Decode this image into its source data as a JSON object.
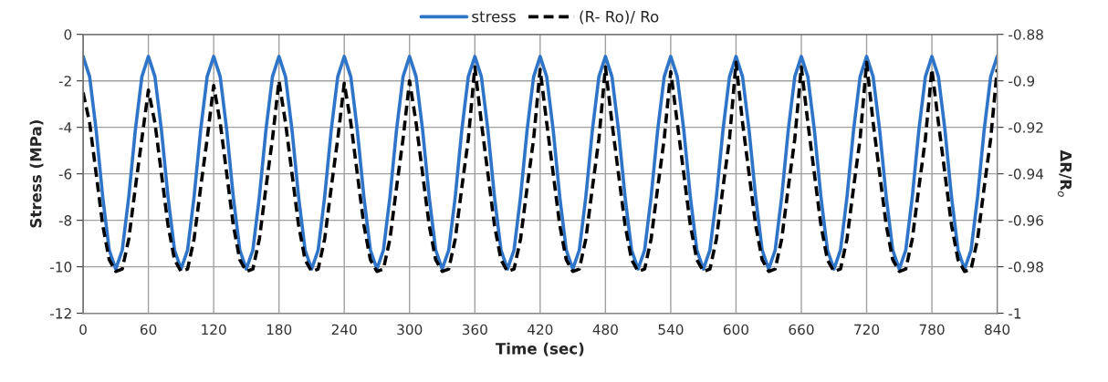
{
  "chart_data": {
    "type": "line",
    "xlabel": "Time (sec)",
    "ylabel": "Stress (MPa)",
    "y2label": "ΔR/R$_{o}$",
    "x": [
      0,
      6,
      12,
      18,
      24,
      30,
      36,
      42,
      48,
      54,
      60,
      66,
      72,
      78,
      84,
      90,
      96,
      102,
      108,
      114,
      120,
      126,
      132,
      138,
      144,
      150,
      156,
      162,
      168,
      174,
      180,
      186,
      192,
      198,
      204,
      210,
      216,
      222,
      228,
      234,
      240,
      246,
      252,
      258,
      264,
      270,
      276,
      282,
      288,
      294,
      300,
      306,
      312,
      318,
      324,
      330,
      336,
      342,
      348,
      354,
      360,
      366,
      372,
      378,
      384,
      390,
      396,
      402,
      408,
      414,
      420,
      426,
      432,
      438,
      444,
      450,
      456,
      462,
      468,
      474,
      480,
      486,
      492,
      498,
      504,
      510,
      516,
      522,
      528,
      534,
      540,
      546,
      552,
      558,
      564,
      570,
      576,
      582,
      588,
      594,
      600,
      606,
      612,
      618,
      624,
      630,
      636,
      642,
      648,
      654,
      660,
      666,
      672,
      678,
      684,
      690,
      696,
      702,
      708,
      714,
      720,
      726,
      732,
      738,
      744,
      750,
      756,
      762,
      768,
      774,
      780,
      786,
      792,
      798,
      804,
      810,
      816,
      822,
      828,
      834,
      840
    ],
    "series": [
      {
        "name": "stress",
        "color": "#2e75c9",
        "line_style": "solid",
        "values": [
          -0.95,
          -1.82,
          -4.12,
          -6.98,
          -9.28,
          -10.1,
          -9.28,
          -6.98,
          -4.12,
          -1.82,
          -0.95,
          -1.82,
          -4.12,
          -6.98,
          -9.28,
          -10.1,
          -9.28,
          -6.98,
          -4.12,
          -1.82,
          -0.95,
          -1.82,
          -4.12,
          -6.98,
          -9.28,
          -10.1,
          -9.28,
          -6.98,
          -4.12,
          -1.82,
          -0.95,
          -1.82,
          -4.12,
          -6.98,
          -9.28,
          -10.1,
          -9.28,
          -6.98,
          -4.12,
          -1.82,
          -0.95,
          -1.82,
          -4.12,
          -6.98,
          -9.28,
          -10.1,
          -9.28,
          -6.98,
          -4.12,
          -1.82,
          -0.95,
          -1.82,
          -4.12,
          -6.98,
          -9.28,
          -10.1,
          -9.28,
          -6.98,
          -4.12,
          -1.82,
          -0.95,
          -1.82,
          -4.12,
          -6.98,
          -9.28,
          -10.1,
          -9.28,
          -6.98,
          -4.12,
          -1.82,
          -0.95,
          -1.82,
          -4.12,
          -6.98,
          -9.28,
          -10.1,
          -9.28,
          -6.98,
          -4.12,
          -1.82,
          -0.95,
          -1.82,
          -4.12,
          -6.98,
          -9.28,
          -10.1,
          -9.28,
          -6.98,
          -4.12,
          -1.82,
          -0.95,
          -1.82,
          -4.12,
          -6.98,
          -9.28,
          -10.1,
          -9.28,
          -6.98,
          -4.12,
          -1.82,
          -0.95,
          -1.82,
          -4.12,
          -6.98,
          -9.28,
          -10.1,
          -9.28,
          -6.98,
          -4.12,
          -1.82,
          -0.95,
          -1.82,
          -4.12,
          -6.98,
          -9.28,
          -10.1,
          -9.28,
          -6.98,
          -4.12,
          -1.82,
          -0.95,
          -1.82,
          -4.12,
          -6.98,
          -9.28,
          -10.1,
          -9.28,
          -6.98,
          -4.12,
          -1.82,
          -0.95,
          -1.82,
          -4.12,
          -6.98,
          -9.28,
          -10.1,
          -9.28,
          -6.98,
          -4.12,
          -1.82,
          -0.95
        ]
      },
      {
        "name": "(R- Ro)/ Ro",
        "color": "#000000",
        "line_style": "dashed",
        "axis": "y2",
        "values": [
          -0.905,
          -0.918,
          -0.94,
          -0.962,
          -0.977,
          -0.982,
          -0.981,
          -0.968,
          -0.946,
          -0.925,
          -0.904,
          -0.918,
          -0.94,
          -0.962,
          -0.977,
          -0.982,
          -0.981,
          -0.968,
          -0.946,
          -0.925,
          -0.902,
          -0.918,
          -0.94,
          -0.962,
          -0.977,
          -0.982,
          -0.981,
          -0.968,
          -0.946,
          -0.925,
          -0.9,
          -0.918,
          -0.94,
          -0.962,
          -0.977,
          -0.982,
          -0.981,
          -0.968,
          -0.946,
          -0.925,
          -0.901,
          -0.918,
          -0.94,
          -0.962,
          -0.977,
          -0.982,
          -0.981,
          -0.968,
          -0.946,
          -0.925,
          -0.9,
          -0.918,
          -0.94,
          -0.962,
          -0.977,
          -0.982,
          -0.981,
          -0.968,
          -0.946,
          -0.925,
          -0.894,
          -0.918,
          -0.94,
          -0.962,
          -0.977,
          -0.982,
          -0.981,
          -0.968,
          -0.946,
          -0.925,
          -0.895,
          -0.918,
          -0.94,
          -0.962,
          -0.977,
          -0.982,
          -0.981,
          -0.968,
          -0.946,
          -0.925,
          -0.894,
          -0.918,
          -0.94,
          -0.962,
          -0.977,
          -0.982,
          -0.981,
          -0.968,
          -0.946,
          -0.925,
          -0.896,
          -0.918,
          -0.94,
          -0.962,
          -0.977,
          -0.982,
          -0.981,
          -0.968,
          -0.946,
          -0.925,
          -0.892,
          -0.918,
          -0.94,
          -0.962,
          -0.977,
          -0.982,
          -0.981,
          -0.968,
          -0.946,
          -0.925,
          -0.894,
          -0.918,
          -0.94,
          -0.962,
          -0.977,
          -0.982,
          -0.981,
          -0.968,
          -0.946,
          -0.925,
          -0.892,
          -0.918,
          -0.94,
          -0.962,
          -0.977,
          -0.982,
          -0.981,
          -0.968,
          -0.946,
          -0.925,
          -0.895,
          -0.918,
          -0.94,
          -0.962,
          -0.977,
          -0.982,
          -0.981,
          -0.968,
          -0.946,
          -0.925,
          -0.895
        ]
      }
    ],
    "xlim": [
      0,
      840
    ],
    "xticks": [
      0,
      60,
      120,
      180,
      240,
      300,
      360,
      420,
      480,
      540,
      600,
      660,
      720,
      780,
      840
    ],
    "ylim": [
      -12,
      0
    ],
    "yticks": [
      -12,
      -10,
      -8,
      -6,
      -4,
      -2,
      0
    ],
    "y2lim": [
      -1,
      -0.88
    ],
    "y2ticks": [
      -1,
      -0.98,
      -0.96,
      -0.94,
      -0.92,
      -0.9,
      -0.88
    ],
    "grid": true,
    "legend": "top",
    "marker": "none"
  }
}
